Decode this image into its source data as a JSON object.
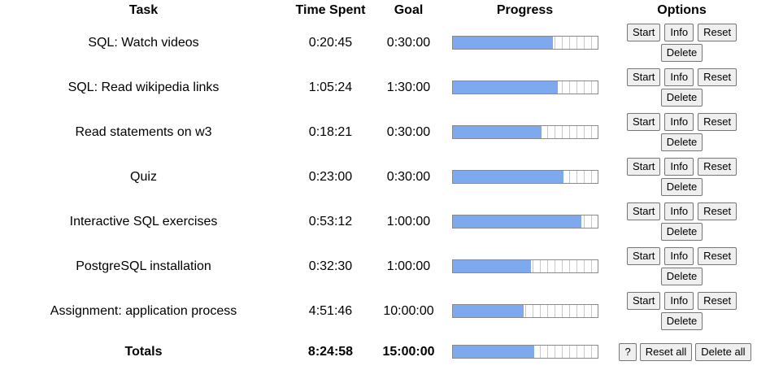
{
  "headers": {
    "task": "Task",
    "time_spent": "Time Spent",
    "goal": "Goal",
    "progress": "Progress",
    "options": "Options"
  },
  "buttons": {
    "start": "Start",
    "info": "Info",
    "reset": "Reset",
    "delete": "Delete",
    "help": "?",
    "reset_all": "Reset all",
    "delete_all": "Delete all"
  },
  "tasks": [
    {
      "name": "SQL: Watch videos",
      "time_spent": "0:20:45",
      "goal": "0:30:00",
      "progress": 0.6917
    },
    {
      "name": "SQL: Read wikipedia links",
      "time_spent": "1:05:24",
      "goal": "1:30:00",
      "progress": 0.7267
    },
    {
      "name": "Read statements on w3",
      "time_spent": "0:18:21",
      "goal": "0:30:00",
      "progress": 0.6117
    },
    {
      "name": "Quiz",
      "time_spent": "0:23:00",
      "goal": "0:30:00",
      "progress": 0.7667
    },
    {
      "name": "Interactive SQL exercises",
      "time_spent": "0:53:12",
      "goal": "1:00:00",
      "progress": 0.8867
    },
    {
      "name": "PostgreSQL installation",
      "time_spent": "0:32:30",
      "goal": "1:00:00",
      "progress": 0.5417
    },
    {
      "name": "Assignment: application process",
      "time_spent": "4:51:46",
      "goal": "10:00:00",
      "progress": 0.4864
    }
  ],
  "totals": {
    "label": "Totals",
    "time_spent": "8:24:58",
    "goal": "15:00:00",
    "progress": 0.5611
  },
  "colors": {
    "progress_fill": "#7ea9ef",
    "progress_border": "#8a8a8a"
  }
}
